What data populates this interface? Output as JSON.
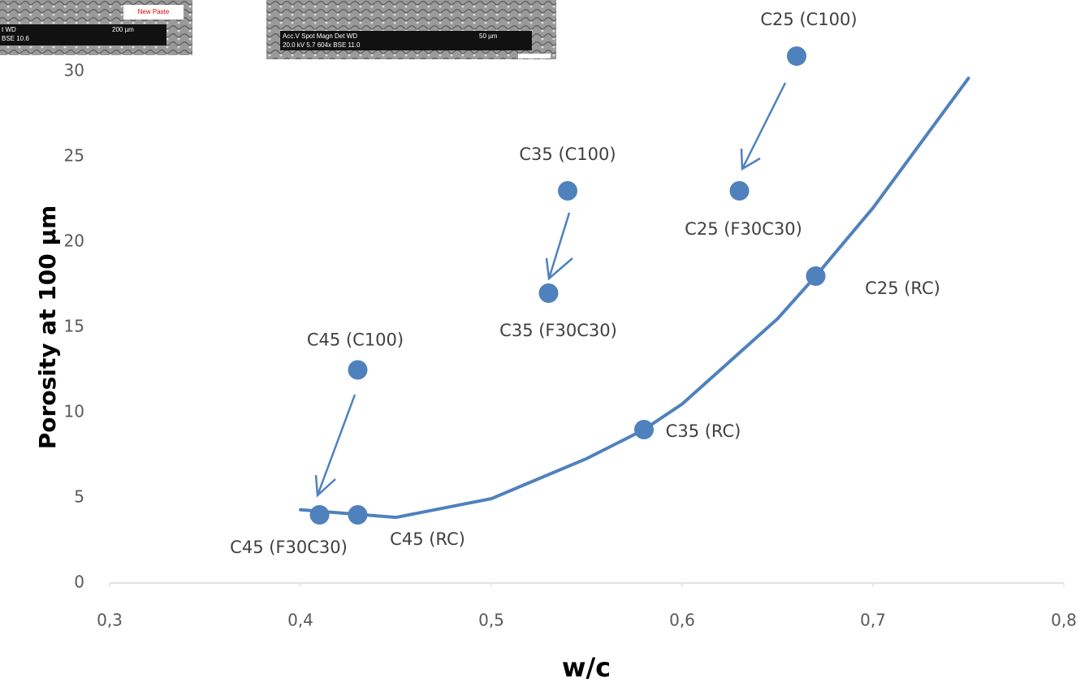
{
  "chart_data": {
    "type": "scatter",
    "x_label": "w/c",
    "y_label": "Porosity at 100 µm",
    "x": [
      0.66,
      0.63,
      0.67,
      0.54,
      0.53,
      0.58,
      0.43,
      0.41,
      0.43
    ],
    "values": [
      30.9,
      23,
      18,
      23,
      17,
      9,
      12.5,
      4,
      4
    ],
    "labels": [
      "C25 (C100)",
      "C25 (F30C30)",
      "C25 (RC)",
      "C35 (C100)",
      "C35 (F30C30)",
      "C35 (RC)",
      "C45 (C100)",
      "C45 (F30C30)",
      "C45 (RC)"
    ],
    "color": "#4f81bd",
    "trendline": {
      "x": [
        0.4,
        0.45,
        0.5,
        0.55,
        0.58,
        0.6,
        0.65,
        0.67,
        0.7,
        0.75
      ],
      "values": [
        4.3,
        3.85,
        4.95,
        7.3,
        9,
        10.5,
        15.5,
        18,
        22,
        29.6
      ]
    },
    "xlim": [
      0.3,
      0.8
    ],
    "ylim": [
      0,
      30
    ],
    "xticks": [
      {
        "value": 0.3,
        "label": "0,3"
      },
      {
        "value": 0.4,
        "label": "0,4"
      },
      {
        "value": 0.5,
        "label": "0,5"
      },
      {
        "value": 0.6,
        "label": "0,6"
      },
      {
        "value": 0.7,
        "label": "0,7"
      },
      {
        "value": 0.8,
        "label": "0,8"
      }
    ],
    "yticks": [
      0,
      5,
      10,
      15,
      20,
      25,
      30
    ],
    "grid": false,
    "insets": [
      {
        "texts": [
          "t  WD",
          "200 µm",
          "BSE 10.6",
          "New Paste"
        ]
      },
      {
        "texts": [
          "Acc.V  Spot Magn    Det  WD",
          "50 µm",
          "20.0 kV 5.7  604x    BSE  11.0"
        ]
      }
    ]
  }
}
